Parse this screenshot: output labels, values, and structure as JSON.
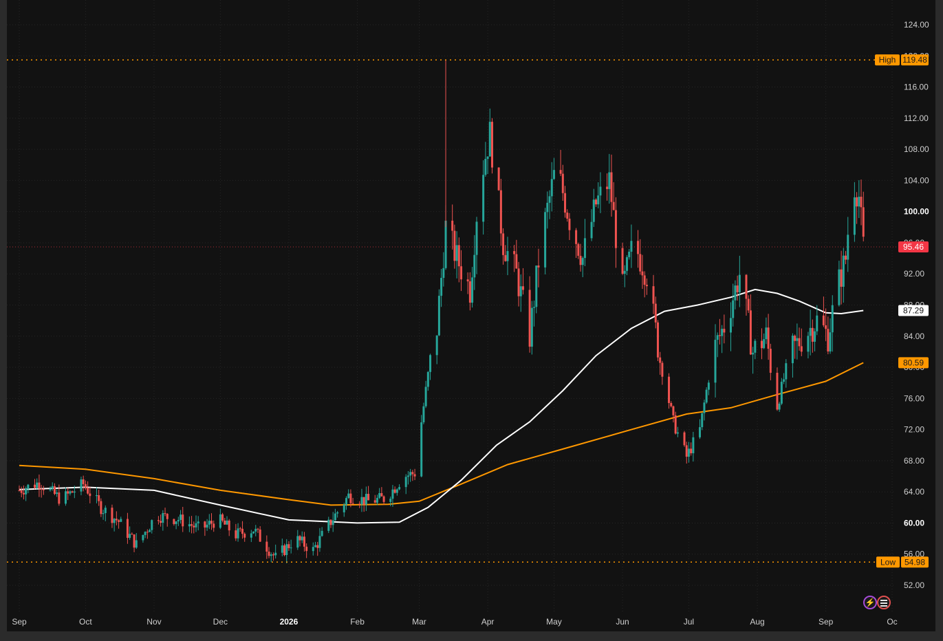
{
  "chart_data": {
    "type": "candlestick",
    "x_axis": {
      "labels": [
        {
          "text": "Sep",
          "date": "2025-09-01"
        },
        {
          "text": "Oct",
          "date": "2025-10-01"
        },
        {
          "text": "Nov",
          "date": "2025-11-01"
        },
        {
          "text": "Dec",
          "date": "2025-12-01"
        },
        {
          "text": "2026",
          "date": "2026-01-01",
          "bold": true
        },
        {
          "text": "Feb",
          "date": "2026-02-01"
        },
        {
          "text": "Mar",
          "date": "2026-03-01"
        },
        {
          "text": "Apr",
          "date": "2026-04-01"
        },
        {
          "text": "May",
          "date": "2026-05-01"
        },
        {
          "text": "Jun",
          "date": "2026-06-01"
        },
        {
          "text": "Jul",
          "date": "2026-07-01"
        },
        {
          "text": "Aug",
          "date": "2026-08-01"
        },
        {
          "text": "Sep",
          "date": "2026-09-01"
        },
        {
          "text": "Oc",
          "date": "2026-10-01"
        }
      ]
    },
    "y_axis": {
      "range": [
        49,
        126
      ],
      "ticks": [
        "124.00",
        "120.00",
        "116.00",
        "112.00",
        "108.00",
        "104.00",
        "100.00",
        "96.00",
        "92.00",
        "88.00",
        "84.00",
        "80.00",
        "76.00",
        "72.00",
        "68.00",
        "64.00",
        "60.00",
        "56.00",
        "52.00"
      ],
      "bold_ticks": [
        "100.00",
        "60.00"
      ]
    },
    "grid": true,
    "high": {
      "label": "High",
      "value": "119.48",
      "color": "#ff9800"
    },
    "low": {
      "label": "Low",
      "value": "54.98",
      "color": "#ff9800"
    },
    "last_price": {
      "value": "95.46",
      "color": "#f23645"
    },
    "moving_averages": [
      {
        "value": "87.29",
        "color": "#ffffff"
      },
      {
        "value": "80.59",
        "color": "#ff9800"
      }
    ],
    "colors": {
      "up": "#26a69a",
      "down": "#ef5350",
      "background": "#121212",
      "grid": "#2a2a2a"
    },
    "price_path": [
      [
        "2025-09-01",
        64.2
      ],
      [
        "2025-09-10",
        65.2
      ],
      [
        "2025-09-20",
        63.0
      ],
      [
        "2025-09-30",
        65.0
      ],
      [
        "2025-10-08",
        62.0
      ],
      [
        "2025-10-16",
        60.2
      ],
      [
        "2025-10-24",
        57.2
      ],
      [
        "2025-11-02",
        61.0
      ],
      [
        "2025-11-12",
        60.5
      ],
      [
        "2025-11-22",
        59.2
      ],
      [
        "2025-11-30",
        60.5
      ],
      [
        "2025-12-08",
        58.5
      ],
      [
        "2025-12-16",
        59.2
      ],
      [
        "2025-12-26",
        55.5
      ],
      [
        "2026-01-04",
        58.0
      ],
      [
        "2026-01-12",
        56.5
      ],
      [
        "2026-01-20",
        60.2
      ],
      [
        "2026-01-28",
        63.5
      ],
      [
        "2026-02-06",
        62.8
      ],
      [
        "2026-02-14",
        63.2
      ],
      [
        "2026-02-22",
        66.0
      ],
      [
        "2026-02-28",
        66.5
      ],
      [
        "2026-03-02",
        73.0
      ],
      [
        "2026-03-05",
        79.0
      ],
      [
        "2026-03-09",
        85.0
      ],
      [
        "2026-03-13",
        98.0
      ],
      [
        "2026-03-18",
        94.0
      ],
      [
        "2026-03-24",
        90.0
      ],
      [
        "2026-03-28",
        103.0
      ],
      [
        "2026-04-02",
        110.0
      ],
      [
        "2026-04-08",
        96.0
      ],
      [
        "2026-04-14",
        92.0
      ],
      [
        "2026-04-20",
        84.0
      ],
      [
        "2026-04-25",
        96.0
      ],
      [
        "2026-05-02",
        106.0
      ],
      [
        "2026-05-08",
        99.0
      ],
      [
        "2026-05-14",
        94.0
      ],
      [
        "2026-05-20",
        101.0
      ],
      [
        "2026-05-26",
        104.0
      ],
      [
        "2026-06-01",
        90.0
      ],
      [
        "2026-06-06",
        96.0
      ],
      [
        "2026-06-12",
        92.0
      ],
      [
        "2026-06-18",
        81.0
      ],
      [
        "2026-06-24",
        73.0
      ],
      [
        "2026-06-30",
        68.5
      ],
      [
        "2026-07-06",
        72.0
      ],
      [
        "2026-07-12",
        82.0
      ],
      [
        "2026-07-18",
        86.0
      ],
      [
        "2026-07-24",
        92.0
      ],
      [
        "2026-07-30",
        82.0
      ],
      [
        "2026-08-05",
        84.0
      ],
      [
        "2026-08-10",
        75.0
      ],
      [
        "2026-08-16",
        82.0
      ],
      [
        "2026-08-22",
        84.0
      ],
      [
        "2026-08-28",
        86.0
      ],
      [
        "2026-09-02",
        84.0
      ],
      [
        "2026-09-06",
        90.0
      ],
      [
        "2026-09-10",
        94.0
      ],
      [
        "2026-09-13",
        104.0
      ],
      [
        "2026-09-16",
        102.0
      ],
      [
        "2026-09-18",
        95.5
      ]
    ],
    "sma_white": [
      [
        "2025-09-01",
        64.3
      ],
      [
        "2025-10-01",
        64.6
      ],
      [
        "2025-11-01",
        64.2
      ],
      [
        "2025-12-01",
        62.3
      ],
      [
        "2026-01-01",
        60.4
      ],
      [
        "2026-02-01",
        60.0
      ],
      [
        "2026-02-20",
        60.1
      ],
      [
        "2026-03-05",
        62.0
      ],
      [
        "2026-03-20",
        65.5
      ],
      [
        "2026-04-05",
        70.0
      ],
      [
        "2026-04-20",
        73.0
      ],
      [
        "2026-05-05",
        77.0
      ],
      [
        "2026-05-20",
        81.5
      ],
      [
        "2026-06-05",
        85.0
      ],
      [
        "2026-06-20",
        87.2
      ],
      [
        "2026-07-05",
        88.0
      ],
      [
        "2026-07-20",
        89.0
      ],
      [
        "2026-07-31",
        90.0
      ],
      [
        "2026-08-10",
        89.5
      ],
      [
        "2026-08-20",
        88.5
      ],
      [
        "2026-09-01",
        87.0
      ],
      [
        "2026-09-08",
        86.9
      ],
      [
        "2026-09-18",
        87.29
      ]
    ],
    "sma_orange": [
      [
        "2025-09-01",
        67.4
      ],
      [
        "2025-10-01",
        66.9
      ],
      [
        "2025-11-01",
        65.7
      ],
      [
        "2025-12-01",
        64.2
      ],
      [
        "2026-01-01",
        63.0
      ],
      [
        "2026-01-20",
        62.3
      ],
      [
        "2026-02-15",
        62.4
      ],
      [
        "2026-03-01",
        62.8
      ],
      [
        "2026-03-20",
        65.0
      ],
      [
        "2026-04-10",
        67.5
      ],
      [
        "2026-05-05",
        69.5
      ],
      [
        "2026-06-05",
        72.0
      ],
      [
        "2026-06-30",
        74.0
      ],
      [
        "2026-07-20",
        74.8
      ],
      [
        "2026-08-10",
        76.5
      ],
      [
        "2026-09-01",
        78.2
      ],
      [
        "2026-09-18",
        80.59
      ]
    ]
  },
  "icons": {
    "bolt": "lightning-bolt-icon",
    "flag": "us-flag-icon"
  }
}
